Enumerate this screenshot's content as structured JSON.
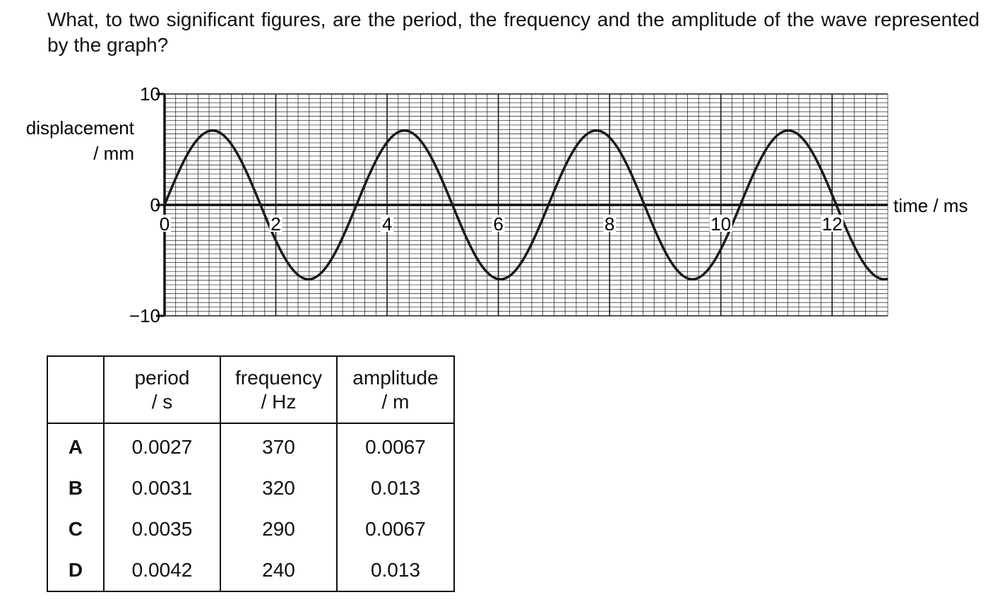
{
  "question": "What, to two significant figures, are the period, the frequency and the amplitude of the wave represented by the graph?",
  "chart_data": {
    "type": "line",
    "title": "",
    "ylabel_line1": "displacement",
    "ylabel_line2": "/ mm",
    "xlabel": "time / ms",
    "xlim": [
      0,
      13
    ],
    "ylim": [
      -10,
      10
    ],
    "x_ticks": [
      "0",
      "2",
      "4",
      "6",
      "8",
      "10",
      "12"
    ],
    "y_ticks": [
      "10",
      "0",
      "−10"
    ],
    "grid": true,
    "waveform": "sine",
    "amplitude": 6.7,
    "period": 3.45,
    "phase_start": 0
  },
  "table": {
    "headers": [
      {
        "line1": "",
        "line2": ""
      },
      {
        "line1": "period",
        "line2": "/ s"
      },
      {
        "line1": "frequency",
        "line2": "/ Hz"
      },
      {
        "line1": "amplitude",
        "line2": "/ m"
      }
    ],
    "rows": [
      {
        "key": "A",
        "period": "0.0027",
        "frequency": "370",
        "amplitude": "0.0067"
      },
      {
        "key": "B",
        "period": "0.0031",
        "frequency": "320",
        "amplitude": "0.013"
      },
      {
        "key": "C",
        "period": "0.0035",
        "frequency": "290",
        "amplitude": "0.0067"
      },
      {
        "key": "D",
        "period": "0.0042",
        "frequency": "240",
        "amplitude": "0.013"
      }
    ]
  }
}
